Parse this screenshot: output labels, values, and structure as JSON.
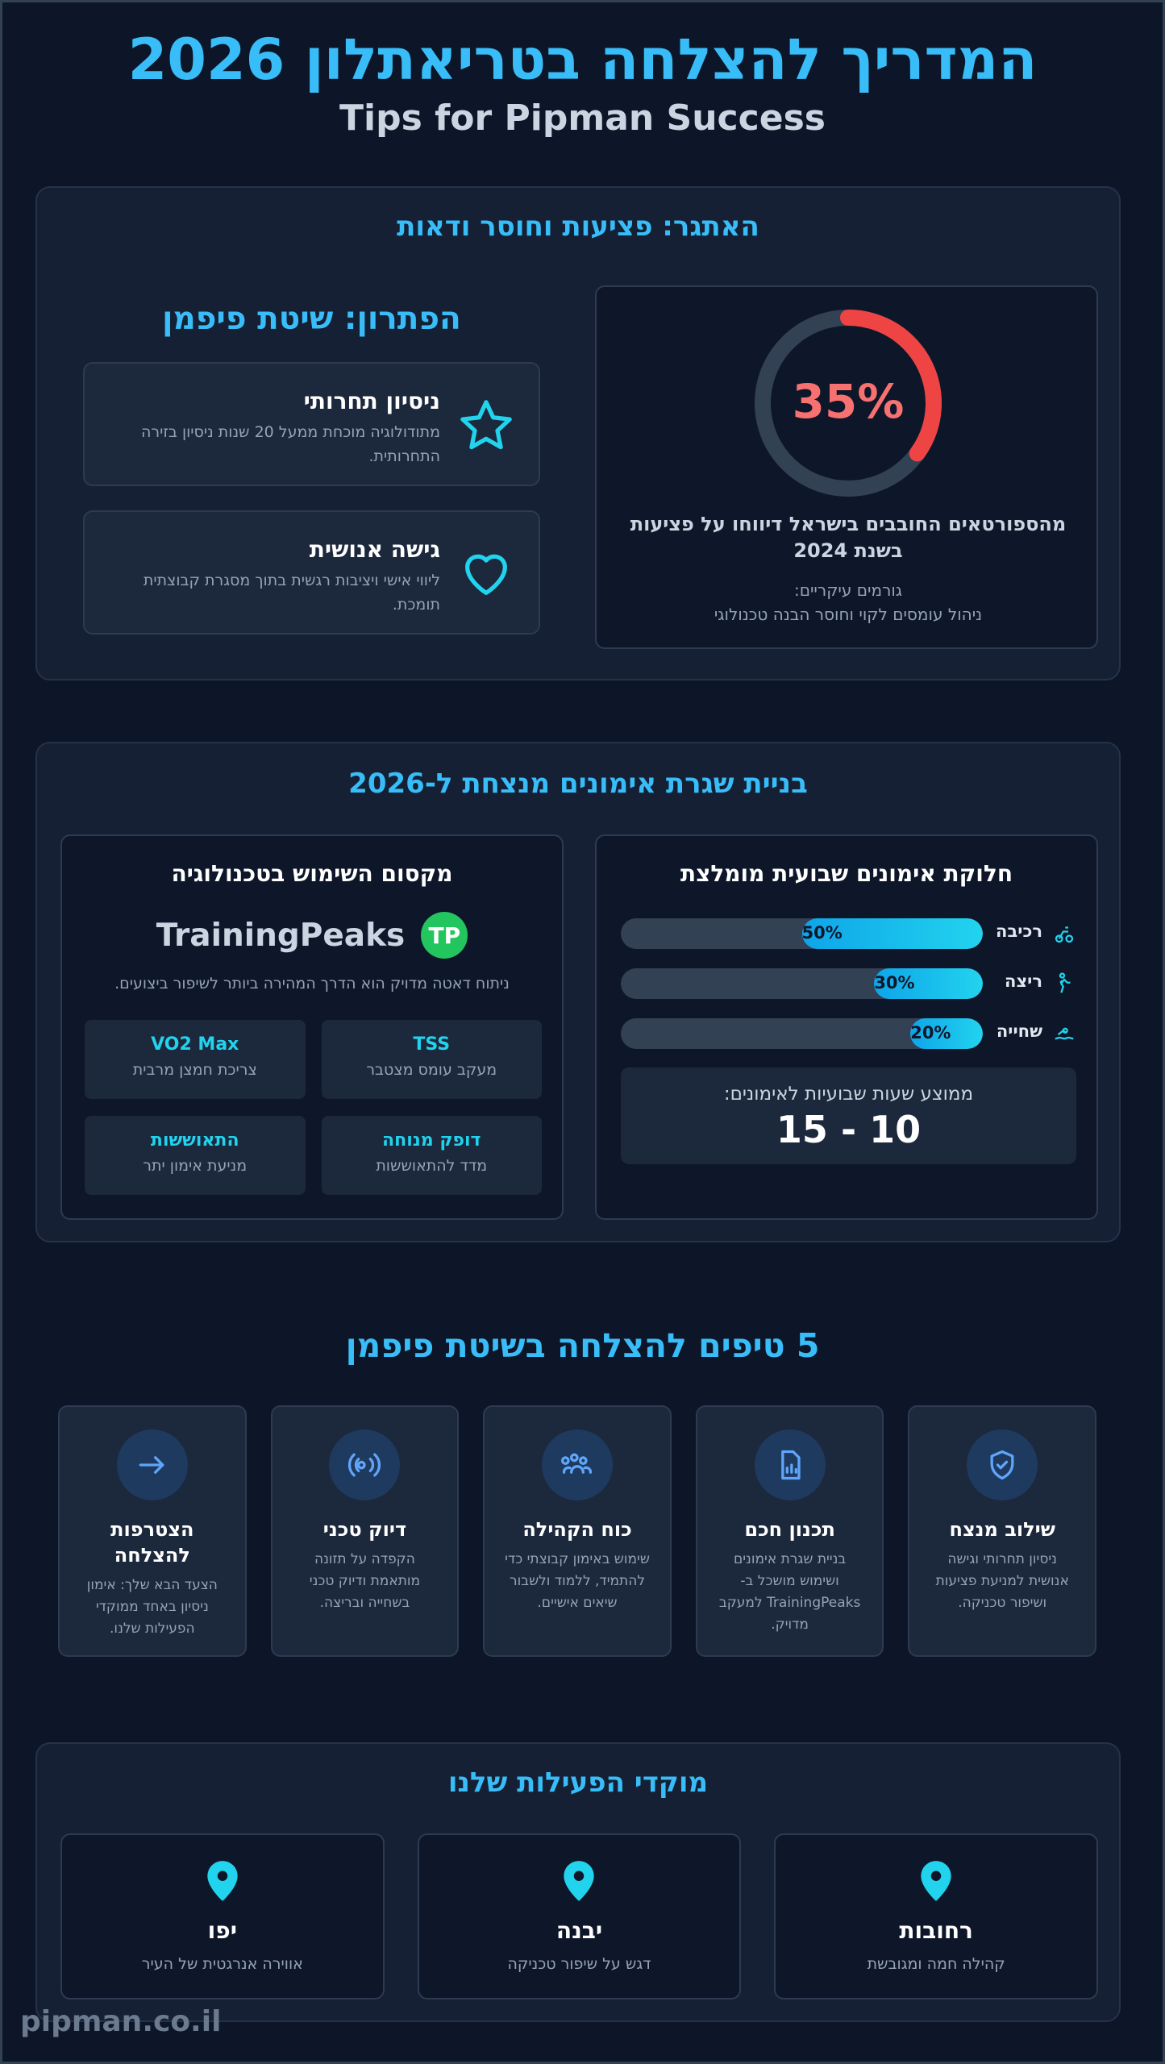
{
  "header": {
    "title": "המדריך להצלחה בטריאתלון 2026",
    "subtitle": "Tips for Pipman Success"
  },
  "challenge": {
    "heading": "האתגר: פציעות וחוסר ודאות",
    "stat": {
      "value": 35,
      "label": "35%"
    },
    "description": "מהספורטאים החובבים בישראל דיווחו על פציעות בשנת 2024",
    "factors_title": "גורמים עיקריים:",
    "factors": "ניהול עומסים לקוי וחוסר הבנה טכנולוגי"
  },
  "solution": {
    "heading": "הפתרון: שיטת פיפמן",
    "cards": [
      {
        "title": "ניסיון תחרותי",
        "text": "מתודולוגיה מוכחת ממעל 20 שנות ניסיון בזירה התחרותית."
      },
      {
        "title": "גישה אנושית",
        "text": "ליווי אישי ויציבות רגשית בתוך מסגרת קבוצתית תומכת."
      }
    ]
  },
  "training": {
    "heading": "בניית שגרת אימונים מנצחת ל-2026",
    "split": {
      "title": "חלוקת אימונים שבועית מומלצת",
      "bars": [
        {
          "name": "רכיבה",
          "value": 50,
          "label": "50%"
        },
        {
          "name": "ריצה",
          "value": 30,
          "label": "30%"
        },
        {
          "name": "שחייה",
          "value": 20,
          "label": "20%"
        }
      ],
      "hours_title": "ממוצע שעות שבועיות לאימונים:",
      "hours": "10 - 15"
    },
    "tech": {
      "title": "מקסום השימוש בטכנולוגיה",
      "logo": "TP",
      "brand": "TrainingPeaks",
      "text": "ניתוח דאטה מדויק הוא הדרך המהירה ביותר לשיפור ביצועים.",
      "metrics": [
        {
          "name": "TSS",
          "text": "מעקב עומס מצטבר"
        },
        {
          "name": "VO2 Max",
          "text": "צריכת חמצן מרבית"
        },
        {
          "name": "דופק מנוחה",
          "text": "מדד להתאוששות"
        },
        {
          "name": "התאוששות",
          "text": "מניעת אימון יתר"
        }
      ]
    }
  },
  "tips": {
    "heading": "5 טיפים להצלחה בשיטת פיפמן",
    "items": [
      {
        "title": "שילוב מנצח",
        "text": "ניסיון תחרותי וגישה אנושית למניעת פציעות ושיפור טכניקה."
      },
      {
        "title": "תכנון חכם",
        "text": "בניית שגרת אימונים ושימוש מושכל ב-TrainingPeaks למעקב מדויק."
      },
      {
        "title": "כוח הקהילה",
        "text": "שימוש באימון קבוצתי כדי להתמיד, ללמוד ולשבור שיאים אישיים."
      },
      {
        "title": "דיוק טכני",
        "text": "הקפדה על תזונה מותאמת ודיוק טכני בשחייה ובריצה."
      },
      {
        "title": "הצטרפות להצלחה",
        "text": "הצעד הבא שלך: אימון ניסיון באחד ממוקדי הפעילות שלנו."
      }
    ]
  },
  "locations": {
    "heading": "מוקדי הפעילות שלנו",
    "items": [
      {
        "name": "רחובות",
        "text": "קהילה חמה ומגובשת"
      },
      {
        "name": "יבנה",
        "text": "דגש על שיפור טכניקה"
      },
      {
        "name": "יפו",
        "text": "אווירה אנרגטית של העיר"
      }
    ]
  },
  "footer": {
    "brand": "pipman.co.il"
  }
}
